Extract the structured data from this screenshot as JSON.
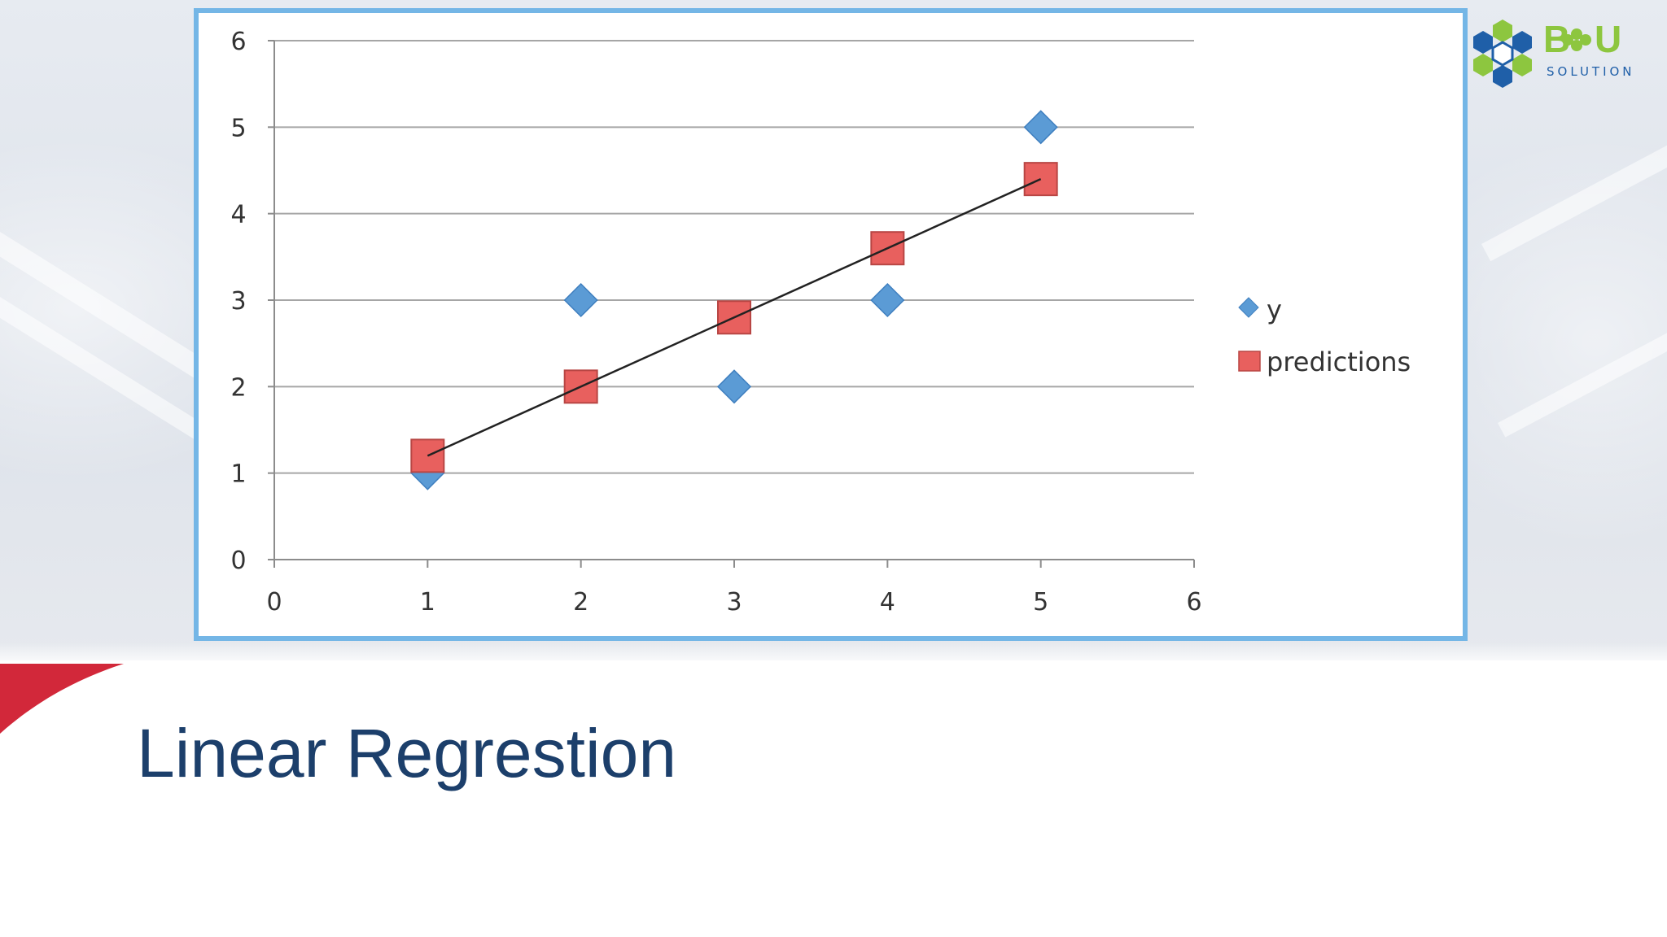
{
  "slide": {
    "title": "Linear Regrestion"
  },
  "logo": {
    "text": "B U",
    "subtext": "SOLUTION"
  },
  "colors": {
    "title": "#1c3f6b",
    "frame": "#74b6e6",
    "accent": "#d2283a",
    "y_marker": "#5b9bd5",
    "prediction_marker": "#e8605e",
    "logo_green": "#8dc63f",
    "logo_blue": "#1f5fa8"
  },
  "chart_data": {
    "type": "scatter",
    "title": "",
    "xlabel": "",
    "ylabel": "",
    "xlim": [
      0,
      6
    ],
    "ylim": [
      0,
      6
    ],
    "x_ticks": [
      "0",
      "1",
      "2",
      "3",
      "4",
      "5",
      "6"
    ],
    "y_ticks": [
      "0",
      "1",
      "2",
      "3",
      "4",
      "5",
      "6"
    ],
    "grid": "horizontal",
    "legend_position": "right",
    "series": [
      {
        "name": "y",
        "marker": "diamond",
        "color": "#5b9bd5",
        "points": [
          [
            1,
            1
          ],
          [
            2,
            3
          ],
          [
            3,
            2
          ],
          [
            4,
            3
          ],
          [
            5,
            5
          ]
        ]
      },
      {
        "name": "predictions",
        "marker": "square",
        "color": "#e8605e",
        "points": [
          [
            1,
            1.2
          ],
          [
            2,
            2.0
          ],
          [
            3,
            2.8
          ],
          [
            4,
            3.6
          ],
          [
            5,
            4.4
          ]
        ]
      }
    ],
    "fit_line": {
      "from": [
        1,
        1.2
      ],
      "to": [
        5,
        4.4
      ],
      "color": "#222222"
    }
  }
}
